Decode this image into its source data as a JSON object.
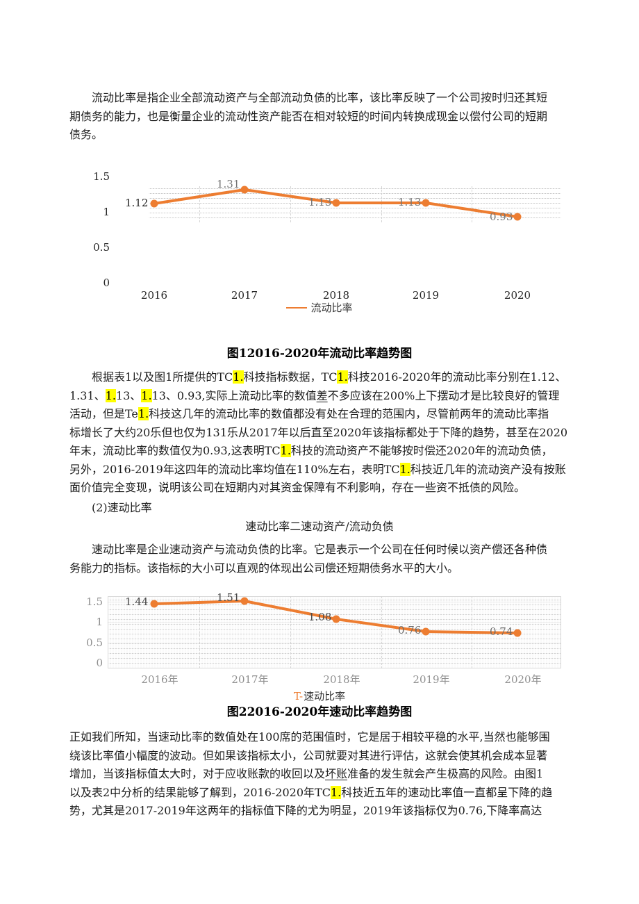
{
  "page": {
    "background": "#ffffff"
  },
  "colors": {
    "series_orange": "#ED7D31",
    "highlight": "#ffff00",
    "gray_label": "#7a7a7a"
  },
  "text": {
    "p1": [
      [
        {
          "t": "流动比率是指企业全部流动资产与全部流动负债的比率，该比率反映了一个公司按时归还其短"
        }
      ],
      [
        {
          "t": "期债务的能力，也是衡量企业的流动性资产能否在相对较短的时间内转换成现金以偿付公司的短期"
        }
      ],
      [
        {
          "t": "债务。"
        }
      ]
    ],
    "caption1": "图12016-2020年流动比率趋势图",
    "p2": [
      [
        {
          "t": "根据表1以及图1所提供的TC"
        },
        {
          "t": "1.",
          "m": "hl"
        },
        {
          "t": "科技指标数据，TC"
        },
        {
          "t": "1.",
          "m": "hl"
        },
        {
          "t": "科技2016-2020年的流动比率分别在1.12、"
        }
      ],
      [
        {
          "t": "1.31、"
        },
        {
          "t": "1.",
          "m": "hl"
        },
        {
          "t": "13、"
        },
        {
          "t": "1.",
          "m": "hl"
        },
        {
          "t": "13、0.93,实际上流动比率的数值"
        },
        {
          "t": "差",
          "m": "u"
        },
        {
          "t": "不多应该在200%上下摆动才是比较良好的管理"
        }
      ],
      [
        {
          "t": "活动，但是Te"
        },
        {
          "t": "1.",
          "m": "hl"
        },
        {
          "t": "科技这几年的流动比率的数值都没有处在合理的范围内，尽管前两年的流动比率指"
        }
      ],
      [
        {
          "t": "标增长了大约20乐但也仅为131乐从2017年以后直至2020年该指标都处于下降的趋势，甚至在2020"
        }
      ],
      [
        {
          "t": "年末，流动比率的数值仅为0.93,这表明TC"
        },
        {
          "t": "1.",
          "m": "hl"
        },
        {
          "t": "科技的流动资产不能够按时偿还2020年的流动负债，"
        }
      ],
      [
        {
          "t": "另外，2016-2019年这四年的流动比率均值在110%左右，表明TC"
        },
        {
          "t": "1.",
          "m": "hl"
        },
        {
          "t": "科技近几年的流动资产没有按账"
        }
      ],
      [
        {
          "t": "面价值完全变现，说明该公司在短期内对其资金保障有不利影响，存在一些资不抵债的风险。"
        }
      ]
    ],
    "subhead": "(2)速动比率",
    "formula": "速动比率二速动资产/流动负债",
    "p3": [
      [
        {
          "t": "速动比率是企业速动资产与流动负债的比率。它是表示一个公司在任何时候以资产偿还各种债"
        }
      ],
      [
        {
          "t": "务能力的指标。该指标的大小可以直观的体现出公司偿还短期债务水平的大小。"
        }
      ]
    ],
    "caption2": "图22016-2020年速动比率趋势图",
    "p4": [
      [
        {
          "t": "正如我们所知，当速动比率的数值处在100席的范围值时，它是居于相较平稳的水平,当然也能够围"
        }
      ],
      [
        {
          "t": "绕该比率值小幅度的波动。但如果该指标太小，公司就要对其进行评估，这就会使其机会成本显著"
        }
      ],
      [
        {
          "t": "增加，当该指标值太大时，对于应收账款的收回以及"
        },
        {
          "t": "坏账",
          "m": "u"
        },
        {
          "t": "准备的发生就会产生极高的风险。由图1"
        }
      ],
      [
        {
          "t": "以及表2中分析的结果能够了解到，2016-2020年TC"
        },
        {
          "t": "1.",
          "m": "hl"
        },
        {
          "t": "科技近五年的速动比率值一直都呈下降的趋"
        }
      ],
      [
        {
          "t": "势，尤其是2017-2019年这两年的指标值下降的尤为明显，2019年该指标仅为0.76,下降率高达"
        }
      ]
    ]
  },
  "chart_data": [
    {
      "type": "line",
      "title": "图12016-2020年流动比率趋势图",
      "categories": [
        "2016",
        "2017",
        "2018",
        "2019",
        "2020"
      ],
      "series": [
        {
          "name": "流动比率",
          "values": [
            1.12,
            1.31,
            1.13,
            1.13,
            0.93
          ],
          "color": "#ED7D31"
        }
      ],
      "data_labels": [
        "1.12",
        "1.31",
        "1.13",
        "1.13",
        "0.93"
      ],
      "ylim": [
        0,
        1.5
      ],
      "yticks": [
        {
          "value": 1.5,
          "label": "1.5"
        },
        {
          "value": 1,
          "label": "1"
        },
        {
          "value": 0.5,
          "label": "0.5"
        },
        {
          "value": 0,
          "label": "0"
        }
      ],
      "xlabel": "",
      "ylabel": "",
      "grid": true,
      "legend_position": "bottom",
      "legend": {
        "marker": "line",
        "label": "流动比率"
      }
    },
    {
      "type": "line",
      "title": "图22016-2020年速动比率趋势图",
      "categories": [
        "2016年",
        "2017年",
        "2018年",
        "2019年",
        "2020年"
      ],
      "series": [
        {
          "name": "速动比率",
          "values": [
            1.44,
            1.51,
            1.08,
            0.76,
            0.74
          ],
          "color": "#ED7D31"
        }
      ],
      "data_labels": [
        "1.44",
        "1.51",
        "1.08",
        "0.76",
        "0.74"
      ],
      "ylim": [
        0,
        1.5
      ],
      "yticks": [
        {
          "value": 1.5,
          "label": "1.5"
        },
        {
          "value": 1,
          "label": "1"
        },
        {
          "value": 0.5,
          "label": "0.5"
        },
        {
          "value": 0,
          "label": "0"
        }
      ],
      "xlabel": "",
      "ylabel": "",
      "grid": true,
      "legend_position": "bottom",
      "legend": {
        "marker": "T-",
        "label": "速动比率"
      }
    }
  ]
}
